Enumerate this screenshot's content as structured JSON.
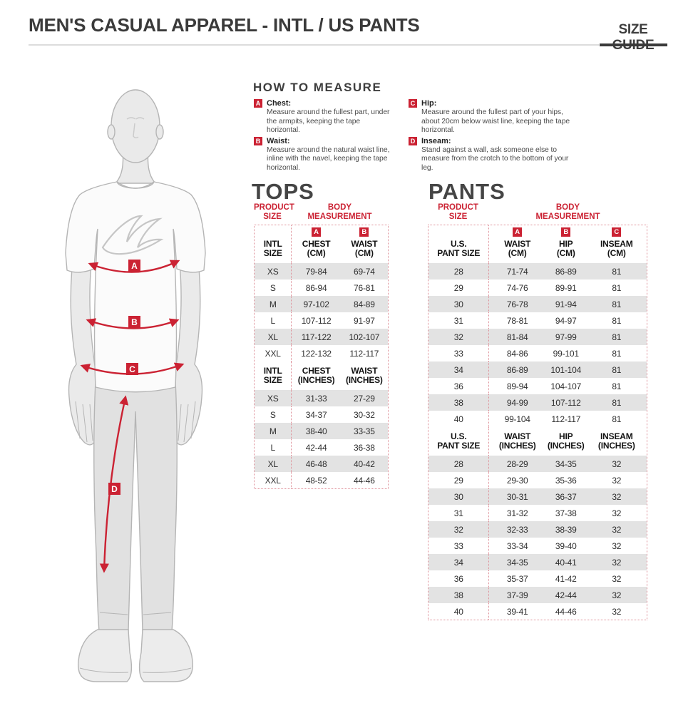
{
  "header": {
    "title": "MEN'S CASUAL APPAREL - INTL / US PANTS",
    "size_guide": "SIZE GUIDE"
  },
  "how_to_measure": {
    "title": "HOW TO MEASURE",
    "items": [
      {
        "marker": "A",
        "label": "Chest:",
        "description": "Measure around the fullest part, under the armpits, keeping the tape horizontal."
      },
      {
        "marker": "B",
        "label": "Waist:",
        "description": "Measure around the natural waist line, inline with the navel, keeping the tape horizontal."
      },
      {
        "marker": "C",
        "label": "Hip:",
        "description": "Measure around the fullest part of your hips, about 20cm below waist line, keeping the tape horizontal."
      },
      {
        "marker": "D",
        "label": "Inseam:",
        "description": "Stand against a wall, ask someone else to measure from the crotch to the bottom of your leg."
      }
    ]
  },
  "figure": {
    "labels": [
      "A",
      "B",
      "C",
      "D"
    ]
  },
  "colors": {
    "accent": "#cb2233",
    "row_shade": "#e3e3e3",
    "outline": "#b5b5b5"
  },
  "tops": {
    "title": "TOPS",
    "product_size_label": "PRODUCT\nSIZE",
    "body_measurement_label": "BODY\nMEASUREMENT",
    "cm": {
      "headers": [
        {
          "m": "",
          "l": "INTL\nSIZE"
        },
        {
          "m": "A",
          "l": "CHEST\n(CM)"
        },
        {
          "m": "B",
          "l": "WAIST\n(CM)"
        }
      ],
      "rows": [
        [
          "XS",
          "79-84",
          "69-74"
        ],
        [
          "S",
          "86-94",
          "76-81"
        ],
        [
          "M",
          "97-102",
          "84-89"
        ],
        [
          "L",
          "107-112",
          "91-97"
        ],
        [
          "XL",
          "117-122",
          "102-107"
        ],
        [
          "XXL",
          "122-132",
          "112-117"
        ]
      ]
    },
    "inches": {
      "headers": [
        {
          "m": "",
          "l": "INTL\nSIZE"
        },
        {
          "m": "",
          "l": "CHEST\n(INCHES)"
        },
        {
          "m": "",
          "l": "WAIST\n(INCHES)"
        }
      ],
      "rows": [
        [
          "XS",
          "31-33",
          "27-29"
        ],
        [
          "S",
          "34-37",
          "30-32"
        ],
        [
          "M",
          "38-40",
          "33-35"
        ],
        [
          "L",
          "42-44",
          "36-38"
        ],
        [
          "XL",
          "46-48",
          "40-42"
        ],
        [
          "XXL",
          "48-52",
          "44-46"
        ]
      ]
    }
  },
  "pants": {
    "title": "PANTS",
    "product_size_label": "PRODUCT\nSIZE",
    "body_measurement_label": "BODY\nMEASUREMENT",
    "cm": {
      "headers": [
        {
          "m": "",
          "l": "U.S.\nPANT SIZE"
        },
        {
          "m": "A",
          "l": "WAIST\n(CM)"
        },
        {
          "m": "B",
          "l": "HIP\n(CM)"
        },
        {
          "m": "C",
          "l": "INSEAM\n(CM)"
        }
      ],
      "rows": [
        [
          "28",
          "71-74",
          "86-89",
          "81"
        ],
        [
          "29",
          "74-76",
          "89-91",
          "81"
        ],
        [
          "30",
          "76-78",
          "91-94",
          "81"
        ],
        [
          "31",
          "78-81",
          "94-97",
          "81"
        ],
        [
          "32",
          "81-84",
          "97-99",
          "81"
        ],
        [
          "33",
          "84-86",
          "99-101",
          "81"
        ],
        [
          "34",
          "86-89",
          "101-104",
          "81"
        ],
        [
          "36",
          "89-94",
          "104-107",
          "81"
        ],
        [
          "38",
          "94-99",
          "107-112",
          "81"
        ],
        [
          "40",
          "99-104",
          "112-117",
          "81"
        ]
      ]
    },
    "inches": {
      "headers": [
        {
          "m": "",
          "l": "U.S.\nPANT SIZE"
        },
        {
          "m": "",
          "l": "WAIST\n(INCHES)"
        },
        {
          "m": "",
          "l": "HIP\n(INCHES)"
        },
        {
          "m": "",
          "l": "INSEAM\n(INCHES)"
        }
      ],
      "rows": [
        [
          "28",
          "28-29",
          "34-35",
          "32"
        ],
        [
          "29",
          "29-30",
          "35-36",
          "32"
        ],
        [
          "30",
          "30-31",
          "36-37",
          "32"
        ],
        [
          "31",
          "31-32",
          "37-38",
          "32"
        ],
        [
          "32",
          "32-33",
          "38-39",
          "32"
        ],
        [
          "33",
          "33-34",
          "39-40",
          "32"
        ],
        [
          "34",
          "34-35",
          "40-41",
          "32"
        ],
        [
          "36",
          "35-37",
          "41-42",
          "32"
        ],
        [
          "38",
          "37-39",
          "42-44",
          "32"
        ],
        [
          "40",
          "39-41",
          "44-46",
          "32"
        ]
      ]
    }
  }
}
